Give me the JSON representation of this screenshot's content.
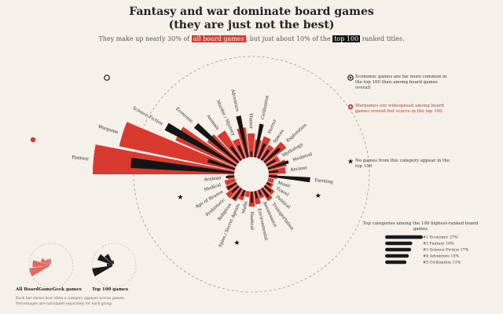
{
  "title_line1": "Fantasy and war dominate board games",
  "title_line2": "(they are just not the best)",
  "subtitle": {
    "pre": "They make up nearly 30% of",
    "hl_all": "all board games",
    "mid": ", but just about 10% of the",
    "hl_top": "top 100",
    "post": "ranked titles."
  },
  "colors": {
    "all": "#d93a30",
    "all_light": "#e8837a",
    "top": "#151515",
    "bg": "#f5f1ea"
  },
  "chart_data": {
    "type": "radial-bar",
    "series": [
      {
        "name": "All BoardGameGeek games",
        "color": "#d93a30"
      },
      {
        "name": "Top 100 games",
        "color": "#151515"
      }
    ],
    "categories": [
      {
        "name": "Fantasy",
        "all": 15.0,
        "top": 11.0
      },
      {
        "name": "Wargame",
        "all": 12.5,
        "top": 3.0
      },
      {
        "name": "Science Fiction",
        "all": 7.0,
        "top": 8.5
      },
      {
        "name": "Economic",
        "all": 4.0,
        "top": 6.0
      },
      {
        "name": "Animals",
        "all": 3.6,
        "top": 1.8
      },
      {
        "name": "Murder / Mystery",
        "all": 2.2,
        "top": 1.5
      },
      {
        "name": "Adventure",
        "all": 3.2,
        "top": 4.5
      },
      {
        "name": "Humor",
        "all": 2.5,
        "top": 0.6
      },
      {
        "name": "Civilization",
        "all": 1.9,
        "top": 3.6
      },
      {
        "name": "Horror",
        "all": 2.4,
        "top": 1.7
      },
      {
        "name": "Spaces",
        "all": 1.8,
        "top": 1.3
      },
      {
        "name": "Exploration",
        "all": 2.8,
        "top": 2.2
      },
      {
        "name": "Mythology",
        "all": 1.5,
        "top": 1.1
      },
      {
        "name": "Medieval",
        "all": 2.0,
        "top": 2.3
      },
      {
        "name": "Ancient",
        "all": 1.8,
        "top": 1.0
      },
      {
        "name": "Farming",
        "all": 0.9,
        "top": 4.4
      },
      {
        "name": "Music",
        "all": 0.6,
        "top": 0
      },
      {
        "name": "Travel",
        "all": 0.7,
        "top": 0.5
      },
      {
        "name": "Political",
        "all": 1.2,
        "top": 0.9
      },
      {
        "name": "Transportation",
        "all": 1.5,
        "top": 1.2
      },
      {
        "name": "Renaissance",
        "all": 0.9,
        "top": 0.6
      },
      {
        "name": "Environmental",
        "all": 1.4,
        "top": 0.8
      },
      {
        "name": "Nautical",
        "all": 1.6,
        "top": 1.2
      },
      {
        "name": "Mafia",
        "all": 0.6,
        "top": 0
      },
      {
        "name": "Spies / Secret Agents",
        "all": 1.1,
        "top": 0.7
      },
      {
        "name": "Religious",
        "all": 1.5,
        "top": 1.4
      },
      {
        "name": "Prehistoric",
        "all": 1.6,
        "top": 1.0
      },
      {
        "name": "Age of Reason",
        "all": 1.2,
        "top": 1.1
      },
      {
        "name": "Medical",
        "all": 1.1,
        "top": 0
      },
      {
        "name": "Arabian",
        "all": 0.7,
        "top": 0.9
      }
    ],
    "ranked_title": "Top categories among the 100 highest-ranked board games",
    "ranked": [
      {
        "name": "Economic",
        "value": 27
      },
      {
        "name": "Fantasy",
        "value": 18
      },
      {
        "name": "Science Fiction",
        "value": 17
      },
      {
        "name": "Adventure",
        "value": 15
      },
      {
        "name": "Civilization",
        "value": 13
      }
    ]
  },
  "annotations": {
    "economic": "Economic games are far more common in the top 100 than among board games overall",
    "wargame": "Wargames are widespread among board games overall but scarce in the top 100",
    "star": "No games from this category appear in the top 100"
  },
  "legend": {
    "all_caption": "All BoardGameGeek games",
    "top_caption": "Top 100 games",
    "footnote_1": "Each bar shows how often a category appears across games.",
    "footnote_2": "Percentages are calculated separately for each group."
  }
}
